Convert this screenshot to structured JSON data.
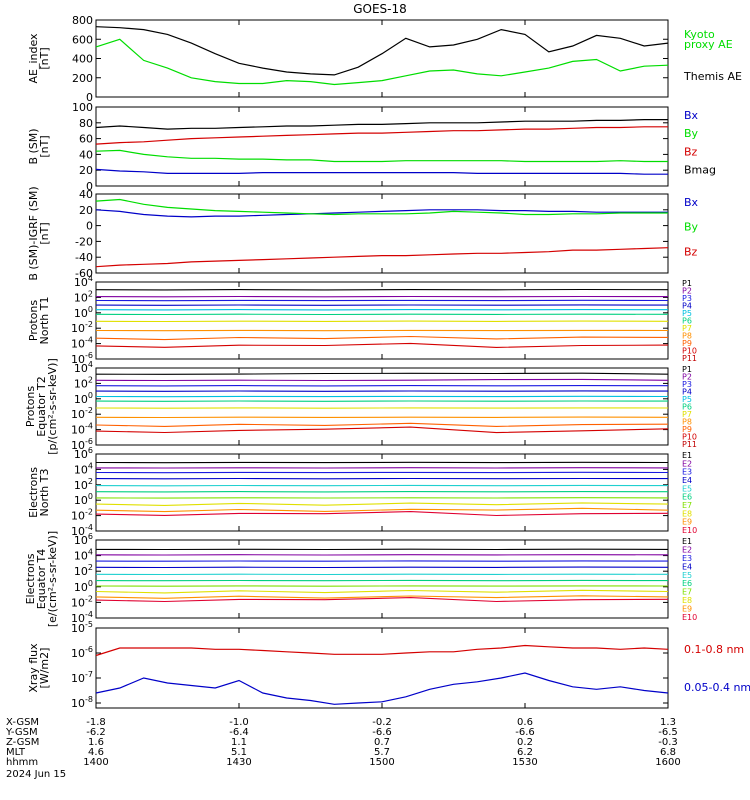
{
  "title": "GOES-18",
  "colors": {
    "black": "#000000",
    "red": "#d40000",
    "green": "#00dd00",
    "blue": "#0000c8",
    "purple": "#8000a0",
    "navy": "#1a1ae0",
    "cyan": "#00c0e0",
    "aqua": "#20d0d0",
    "teal": "#00d080",
    "lime": "#80e000",
    "yellow": "#e0e000",
    "orange": "#ff9000",
    "darkorange": "#ff6000",
    "maroon": "#c00000",
    "crimson": "#e00030"
  },
  "xaxis": {
    "ticks": [
      "1400",
      "1430",
      "1500",
      "1530",
      "1600"
    ],
    "rows": [
      {
        "label": "X-GSM",
        "values": [
          "-1.8",
          "-1.0",
          "-0.2",
          "0.6",
          "1.3"
        ]
      },
      {
        "label": "Y-GSM",
        "values": [
          "-6.2",
          "-6.4",
          "-6.6",
          "-6.6",
          "-6.5"
        ]
      },
      {
        "label": "Z-GSM",
        "values": [
          "1.6",
          "1.1",
          "0.7",
          "0.2",
          "-0.3"
        ]
      },
      {
        "label": "MLT",
        "values": [
          "4.6",
          "5.1",
          "5.7",
          "6.2",
          "6.8"
        ]
      },
      {
        "label": "hhmm",
        "values": [
          "1400",
          "1430",
          "1500",
          "1530",
          "1600"
        ]
      }
    ],
    "date": "2024 Jun 15"
  },
  "chart_data": [
    {
      "type": "line",
      "ylabel": [
        "AE_index",
        "[nT]"
      ],
      "ylim": [
        0,
        800
      ],
      "ticks": [
        "0",
        "200",
        "400",
        "600",
        "800"
      ],
      "x": [
        1400,
        1405,
        1410,
        1415,
        1420,
        1425,
        1430,
        1435,
        1440,
        1445,
        1450,
        1455,
        1500,
        1505,
        1510,
        1515,
        1520,
        1525,
        1530,
        1535,
        1540,
        1545,
        1550,
        1555,
        1600
      ],
      "series": [
        {
          "name": "Kyoto proxy AE",
          "color": "green",
          "values": [
            520,
            600,
            380,
            300,
            200,
            160,
            140,
            140,
            170,
            160,
            130,
            150,
            170,
            220,
            270,
            280,
            240,
            220,
            260,
            300,
            370,
            390,
            270,
            320,
            330
          ]
        },
        {
          "name": "Themis AE",
          "color": "black",
          "values": [
            730,
            720,
            700,
            650,
            560,
            450,
            350,
            300,
            260,
            240,
            230,
            310,
            450,
            610,
            520,
            540,
            600,
            700,
            650,
            470,
            530,
            640,
            610,
            530,
            560
          ]
        }
      ]
    },
    {
      "type": "line",
      "ylabel": [
        "B (SM)",
        "[nT]"
      ],
      "ylim": [
        0,
        100
      ],
      "ticks": [
        "0",
        "20",
        "40",
        "60",
        "80",
        "100"
      ],
      "x": [
        1400,
        1405,
        1410,
        1415,
        1420,
        1425,
        1430,
        1435,
        1440,
        1445,
        1450,
        1455,
        1500,
        1505,
        1510,
        1515,
        1520,
        1525,
        1530,
        1535,
        1540,
        1545,
        1550,
        1555,
        1600
      ],
      "series": [
        {
          "name": "Bx",
          "color": "blue",
          "values": [
            21,
            19,
            18,
            16,
            16,
            16,
            16,
            17,
            17,
            17,
            17,
            17,
            17,
            17,
            17,
            17,
            16,
            16,
            16,
            16,
            16,
            16,
            16,
            15,
            15
          ]
        },
        {
          "name": "By",
          "color": "green",
          "values": [
            44,
            45,
            40,
            37,
            35,
            35,
            34,
            34,
            33,
            33,
            31,
            31,
            31,
            32,
            32,
            32,
            32,
            32,
            31,
            31,
            31,
            31,
            32,
            31,
            31
          ]
        },
        {
          "name": "Bz",
          "color": "red",
          "values": [
            53,
            55,
            56,
            58,
            60,
            61,
            62,
            63,
            64,
            65,
            66,
            67,
            67,
            68,
            69,
            70,
            70,
            71,
            72,
            72,
            73,
            74,
            74,
            75,
            75
          ]
        },
        {
          "name": "Bmag",
          "color": "black",
          "values": [
            74,
            76,
            74,
            72,
            73,
            73,
            74,
            75,
            76,
            76,
            77,
            78,
            78,
            79,
            80,
            80,
            80,
            81,
            82,
            82,
            82,
            83,
            83,
            84,
            84
          ]
        }
      ]
    },
    {
      "type": "line",
      "ylabel": [
        "B (SM)-IGRF (SM)",
        "[nT]"
      ],
      "ylim": [
        -60,
        40
      ],
      "ticks": [
        "-60",
        "-40",
        "-20",
        "0",
        "20",
        "40"
      ],
      "x": [
        1400,
        1405,
        1410,
        1415,
        1420,
        1425,
        1430,
        1435,
        1440,
        1445,
        1450,
        1455,
        1500,
        1505,
        1510,
        1515,
        1520,
        1525,
        1530,
        1535,
        1540,
        1545,
        1550,
        1555,
        1600
      ],
      "series": [
        {
          "name": "Bx",
          "color": "blue",
          "values": [
            20,
            18,
            14,
            12,
            11,
            12,
            12,
            13,
            14,
            15,
            16,
            17,
            18,
            19,
            20,
            20,
            20,
            19,
            19,
            18,
            18,
            17,
            17,
            17,
            17
          ]
        },
        {
          "name": "By",
          "color": "green",
          "values": [
            31,
            33,
            27,
            23,
            21,
            19,
            18,
            17,
            16,
            15,
            14,
            15,
            15,
            15,
            16,
            18,
            17,
            16,
            14,
            14,
            15,
            15,
            16,
            16,
            16
          ]
        },
        {
          "name": "Bz",
          "color": "red",
          "values": [
            -52,
            -50,
            -49,
            -48,
            -46,
            -45,
            -44,
            -43,
            -42,
            -41,
            -40,
            -39,
            -38,
            -38,
            -37,
            -36,
            -35,
            -35,
            -34,
            -33,
            -31,
            -31,
            -30,
            -29,
            -28
          ]
        }
      ]
    },
    {
      "type": "line",
      "ylabel": [
        "Protons",
        "North T1"
      ],
      "ylog": true,
      "ylim": [
        -6,
        4
      ],
      "ticks": [
        "10^4",
        "10^2",
        "10^0",
        "10^-2",
        "10^-4",
        "10^-6"
      ],
      "channels": [
        {
          "name": "P1",
          "color": "black",
          "values": [
            3.0,
            3.0,
            3.0,
            3.0
          ]
        },
        {
          "name": "P2",
          "color": "purple",
          "values": [
            2.1,
            2.1,
            2.1,
            2.1
          ]
        },
        {
          "name": "P3",
          "color": "navy",
          "values": [
            1.6,
            1.6,
            1.6,
            1.6
          ]
        },
        {
          "name": "P4",
          "color": "blue",
          "values": [
            1.0,
            1.0,
            1.0,
            1.0
          ]
        },
        {
          "name": "P5",
          "color": "cyan",
          "values": [
            0.4,
            0.4,
            0.4,
            0.4
          ]
        },
        {
          "name": "P6",
          "color": "teal",
          "values": [
            -0.2,
            -0.2,
            -0.2,
            -0.2
          ]
        },
        {
          "name": "P7",
          "color": "yellow",
          "values": [
            -1.1,
            -1.1,
            -1.1,
            -1.1
          ]
        },
        {
          "name": "P8",
          "color": "orange",
          "values": [
            -2.3,
            -2.3,
            -2.3,
            -2.3
          ]
        },
        {
          "name": "P9",
          "color": "darkorange",
          "values": [
            -3.3,
            -3.2,
            -3.3,
            -3.2
          ]
        },
        {
          "name": "P10",
          "color": "red",
          "values": [
            -4.3,
            -4.1,
            -4.4,
            -4.2
          ]
        },
        {
          "name": "P11",
          "color": "maroon",
          "values": []
        }
      ]
    },
    {
      "type": "line",
      "ylabel": [
        "Protons",
        "Equator T2",
        "[p/(cm²-s-sr-keV)]"
      ],
      "ylog": true,
      "ylim": [
        -6,
        4
      ],
      "ticks": [
        "10^4",
        "10^2",
        "10^0",
        "10^-2",
        "10^-4",
        "10^-6"
      ],
      "channels": [
        {
          "name": "P1",
          "color": "black",
          "values": [
            3.2,
            3.3,
            3.3,
            3.2
          ]
        },
        {
          "name": "P2",
          "color": "purple",
          "values": [
            2.4,
            2.4,
            2.5,
            2.4
          ]
        },
        {
          "name": "P3",
          "color": "navy",
          "values": [
            1.7,
            1.7,
            1.7,
            1.7
          ]
        },
        {
          "name": "P4",
          "color": "blue",
          "values": [
            1.0,
            1.0,
            1.0,
            1.0
          ]
        },
        {
          "name": "P5",
          "color": "cyan",
          "values": [
            0.3,
            0.3,
            0.3,
            0.3
          ]
        },
        {
          "name": "P6",
          "color": "teal",
          "values": [
            -0.3,
            -0.3,
            -0.3,
            -0.3
          ]
        },
        {
          "name": "P7",
          "color": "yellow",
          "values": [
            -1.2,
            -1.2,
            -1.2,
            -1.2
          ]
        },
        {
          "name": "P8",
          "color": "orange",
          "values": [
            -2.4,
            -2.4,
            -2.4,
            -2.4
          ]
        },
        {
          "name": "P9",
          "color": "darkorange",
          "values": [
            -3.4,
            -3.3,
            -3.5,
            -3.3
          ]
        },
        {
          "name": "P10",
          "color": "red",
          "values": [
            -4.2,
            -3.8,
            -4.3,
            -3.9
          ]
        },
        {
          "name": "P11",
          "color": "maroon",
          "values": []
        }
      ]
    },
    {
      "type": "line",
      "ylabel": [
        "Electrons",
        "North T3"
      ],
      "ylog": true,
      "ylim": [
        -4,
        6
      ],
      "ticks": [
        "10^6",
        "10^4",
        "10^2",
        "10^0",
        "10^-2",
        "10^-4"
      ],
      "channels": [
        {
          "name": "E1",
          "color": "black",
          "values": [
            4.9,
            4.9,
            4.9,
            4.9
          ]
        },
        {
          "name": "E2",
          "color": "purple",
          "values": [
            4.2,
            4.2,
            4.2,
            4.2
          ]
        },
        {
          "name": "E3",
          "color": "navy",
          "values": [
            3.6,
            3.6,
            3.6,
            3.6
          ]
        },
        {
          "name": "E4",
          "color": "blue",
          "values": [
            2.8,
            2.8,
            2.8,
            2.8
          ]
        },
        {
          "name": "E5",
          "color": "aqua",
          "values": [
            1.9,
            1.9,
            1.9,
            1.9
          ]
        },
        {
          "name": "E6",
          "color": "teal",
          "values": [
            1.1,
            1.1,
            1.1,
            1.1
          ]
        },
        {
          "name": "E7",
          "color": "lime",
          "values": [
            0.3,
            0.3,
            0.3,
            0.3
          ]
        },
        {
          "name": "E8",
          "color": "yellow",
          "values": [
            -0.5,
            -0.5,
            -0.5,
            -0.5
          ]
        },
        {
          "name": "E9",
          "color": "orange",
          "values": [
            -1.3,
            -1.3,
            -1.2,
            -1.3
          ]
        },
        {
          "name": "E10",
          "color": "crimson",
          "values": [
            -1.8,
            -1.6,
            -1.9,
            -1.7
          ]
        }
      ]
    },
    {
      "type": "line",
      "ylabel": [
        "Electrons",
        "Equator T4",
        "[e/(cm²-s-sr-keV)]"
      ],
      "ylog": true,
      "ylim": [
        -4,
        6
      ],
      "ticks": [
        "10^6",
        "10^4",
        "10^2",
        "10^0",
        "10^-2",
        "10^-4"
      ],
      "channels": [
        {
          "name": "E1",
          "color": "black",
          "values": [
            4.8,
            4.8,
            4.8,
            4.8
          ]
        },
        {
          "name": "E2",
          "color": "purple",
          "values": [
            4.1,
            4.1,
            4.1,
            4.1
          ]
        },
        {
          "name": "E3",
          "color": "navy",
          "values": [
            3.3,
            3.3,
            3.3,
            3.3
          ]
        },
        {
          "name": "E4",
          "color": "blue",
          "values": [
            2.5,
            2.5,
            2.5,
            2.5
          ]
        },
        {
          "name": "E5",
          "color": "aqua",
          "values": [
            1.6,
            1.6,
            1.6,
            1.6
          ]
        },
        {
          "name": "E6",
          "color": "teal",
          "values": [
            0.8,
            0.8,
            0.8,
            0.8
          ]
        },
        {
          "name": "E7",
          "color": "lime",
          "values": [
            0.1,
            0.1,
            0.1,
            0.1
          ]
        },
        {
          "name": "E8",
          "color": "yellow",
          "values": [
            -0.6,
            -0.6,
            -0.6,
            -0.6
          ]
        },
        {
          "name": "E9",
          "color": "orange",
          "values": [
            -1.3,
            -1.3,
            -1.3,
            -1.3
          ]
        },
        {
          "name": "E10",
          "color": "crimson",
          "values": [
            -1.7,
            -1.5,
            -1.8,
            -1.6
          ]
        }
      ]
    },
    {
      "type": "line",
      "ylabel": [
        "Xray flux",
        "[W/m2]"
      ],
      "ylog": true,
      "ylim": [
        -8.2,
        -5
      ],
      "ticks": [
        "10^-5",
        "10^-6",
        "10^-7",
        "10^-8"
      ],
      "x": [
        1400,
        1405,
        1410,
        1415,
        1420,
        1425,
        1430,
        1435,
        1440,
        1445,
        1450,
        1455,
        1500,
        1505,
        1510,
        1515,
        1520,
        1525,
        1530,
        1535,
        1540,
        1545,
        1550,
        1555,
        1600
      ],
      "series": [
        {
          "name": "0.1-0.8 nm",
          "color": "red",
          "values": [
            -6.1,
            -5.8,
            -5.8,
            -5.8,
            -5.8,
            -5.85,
            -5.85,
            -5.9,
            -5.95,
            -6.0,
            -6.05,
            -6.05,
            -6.05,
            -6.0,
            -5.95,
            -5.95,
            -5.85,
            -5.8,
            -5.7,
            -5.75,
            -5.8,
            -5.8,
            -5.85,
            -5.8,
            -5.85
          ]
        },
        {
          "name": "0.05-0.4 nm",
          "color": "blue",
          "values": [
            -7.6,
            -7.4,
            -7.0,
            -7.2,
            -7.3,
            -7.4,
            -7.1,
            -7.6,
            -7.8,
            -7.9,
            -8.05,
            -8.0,
            -7.95,
            -7.75,
            -7.45,
            -7.25,
            -7.15,
            -7.0,
            -6.8,
            -7.1,
            -7.35,
            -7.45,
            -7.35,
            -7.5,
            -7.6
          ]
        }
      ]
    }
  ]
}
